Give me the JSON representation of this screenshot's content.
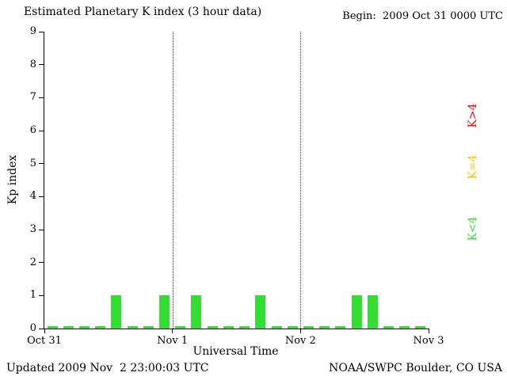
{
  "header": {
    "begin_label": "Begin:  2009 Oct 31 0000 UTC"
  },
  "footer": {
    "updated": "Updated 2009 Nov  2 23:00:03 UTC",
    "source": "NOAA/SWPC Boulder, CO USA"
  },
  "chart_data": {
    "type": "bar",
    "title": "Estimated Planetary K index (3 hour data)",
    "xlabel": "Universal Time",
    "ylabel": "Kp index",
    "ylim": [
      0,
      9
    ],
    "y_ticks": [
      0,
      1,
      2,
      3,
      4,
      5,
      6,
      7,
      8,
      9
    ],
    "x_tick_labels": [
      "Oct 31",
      "Nov 1",
      "Nov 2",
      "Nov 3"
    ],
    "interval_hours": 3,
    "intervals_per_day": 8,
    "values": [
      0,
      0,
      0,
      0,
      1,
      0,
      0,
      1,
      0,
      1,
      0,
      0,
      0,
      1,
      0,
      0,
      0,
      0,
      0,
      1,
      1,
      0,
      0,
      0
    ],
    "bar_color": "#33dd33",
    "day_boundaries": [
      8,
      16
    ],
    "grid": "dotted vertical lines at day boundaries",
    "legend_position": "right",
    "legend": [
      {
        "label": "K>4",
        "color": "#ff0000"
      },
      {
        "label": "K=4",
        "color": "#ffbf00"
      },
      {
        "label": "K<4",
        "color": "#33dd33"
      }
    ]
  }
}
